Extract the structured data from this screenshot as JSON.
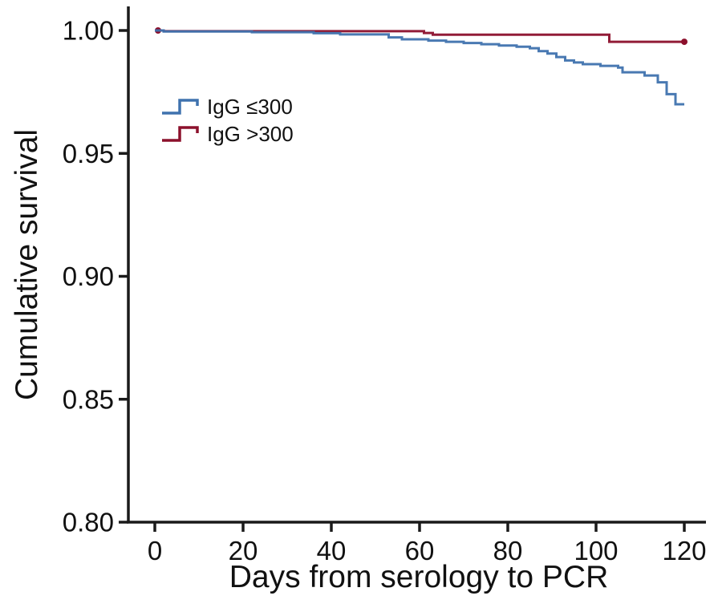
{
  "figure": {
    "background": "#ffffff",
    "text_color": "#111111",
    "axis_color": "#1a1a1a"
  },
  "chart_data": {
    "type": "line",
    "subtype": "kaplan-meier-step-survival",
    "title": "",
    "xlabel": "Days from serology to PCR",
    "ylabel": "Cumulative survival",
    "xlim": [
      0,
      120
    ],
    "ylim": [
      0.8,
      1.0
    ],
    "grid": false,
    "legend_position": "upper-left-inside",
    "xticks": [
      {
        "v": 0,
        "label": "0"
      },
      {
        "v": 20,
        "label": "20"
      },
      {
        "v": 40,
        "label": "40"
      },
      {
        "v": 60,
        "label": "60"
      },
      {
        "v": 80,
        "label": "80"
      },
      {
        "v": 100,
        "label": "100"
      },
      {
        "v": 120,
        "label": "120"
      }
    ],
    "yticks": [
      {
        "v": 1.0,
        "label": "1.00"
      },
      {
        "v": 0.95,
        "label": "0.95"
      },
      {
        "v": 0.9,
        "label": "0.90"
      },
      {
        "v": 0.85,
        "label": "0.85"
      },
      {
        "v": 0.8,
        "label": "0.80"
      }
    ],
    "series": [
      {
        "name": "IgG ≤300",
        "id": "igg-le-300",
        "color": "#3f72ae",
        "start_cap": false,
        "end_cap": false,
        "points": [
          [
            0,
            1.0
          ],
          [
            2,
            0.9996
          ],
          [
            22,
            0.9993
          ],
          [
            36,
            0.9989
          ],
          [
            42,
            0.9984
          ],
          [
            53,
            0.9972
          ],
          [
            56,
            0.9964
          ],
          [
            62,
            0.9959
          ],
          [
            66,
            0.9954
          ],
          [
            70,
            0.9949
          ],
          [
            74,
            0.9944
          ],
          [
            78,
            0.9939
          ],
          [
            82,
            0.9934
          ],
          [
            85,
            0.9928
          ],
          [
            87,
            0.9916
          ],
          [
            89,
            0.9906
          ],
          [
            91,
            0.9892
          ],
          [
            93,
            0.9878
          ],
          [
            95,
            0.987
          ],
          [
            97,
            0.9863
          ],
          [
            101,
            0.9856
          ],
          [
            105,
            0.9849
          ],
          [
            106,
            0.983
          ],
          [
            111,
            0.9817
          ],
          [
            114,
            0.9789
          ],
          [
            116,
            0.9741
          ],
          [
            118,
            0.97
          ],
          [
            120,
            0.97
          ]
        ]
      },
      {
        "name": "IgG >300",
        "id": "igg-gt-300",
        "color": "#8c102c",
        "start_cap": true,
        "end_cap": true,
        "points": [
          [
            0,
            1.0
          ],
          [
            2,
            0.9997
          ],
          [
            61,
            0.999
          ],
          [
            63,
            0.9983
          ],
          [
            103,
            0.9954
          ],
          [
            120,
            0.9954
          ]
        ]
      }
    ]
  }
}
